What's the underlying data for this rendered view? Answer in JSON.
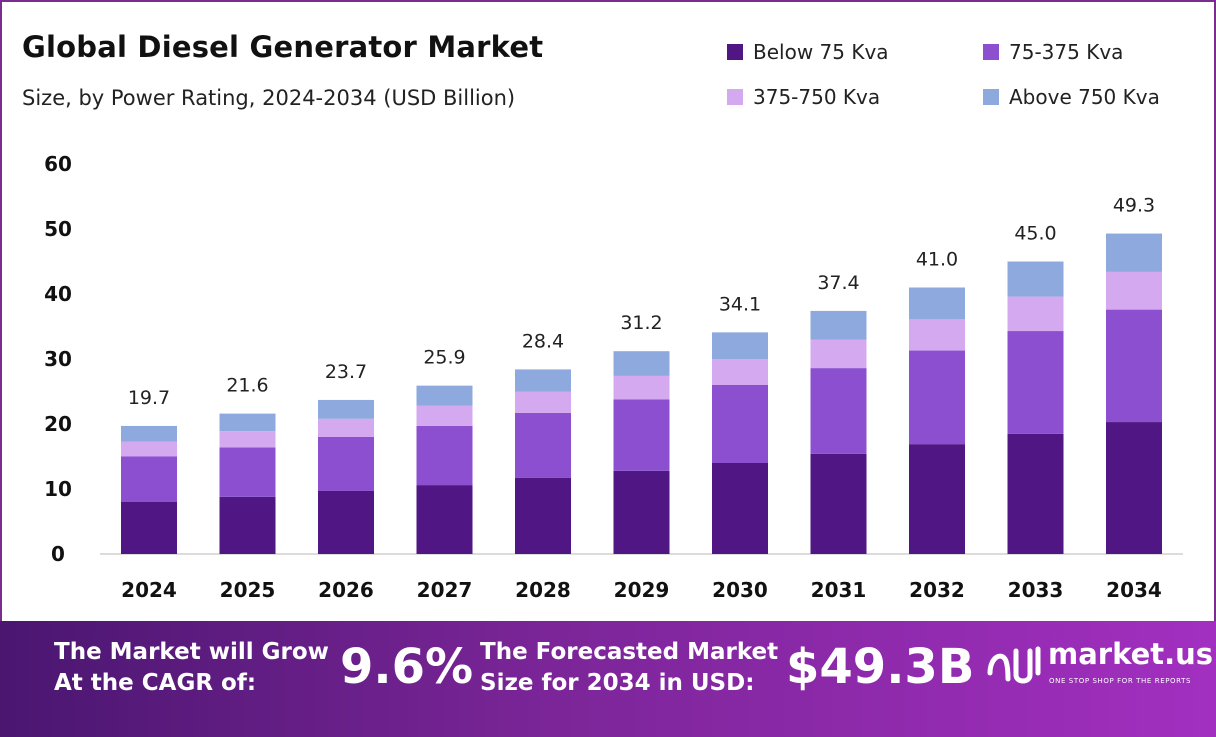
{
  "header": {
    "title": "Global Diesel Generator Market",
    "subtitle": "Size, by Power Rating, 2024-2034 (USD Billion)"
  },
  "colors": {
    "below_75": "#4f1684",
    "r75_375": "#8b4fd0",
    "r375_750": "#d4a9ef",
    "above_750": "#8ea9de",
    "footer_start": "#4a1670",
    "footer_end": "#a22fc0"
  },
  "chart_data": {
    "type": "bar",
    "stacked": true,
    "categories": [
      "2024",
      "2025",
      "2026",
      "2027",
      "2028",
      "2029",
      "2030",
      "2031",
      "2032",
      "2033",
      "2034"
    ],
    "series": [
      {
        "name": "Below 75 Kva",
        "color": "#4f1684",
        "values": [
          8.0,
          8.8,
          9.7,
          10.6,
          11.7,
          12.8,
          14.0,
          15.4,
          16.9,
          18.5,
          20.3
        ]
      },
      {
        "name": "75-375 Kva",
        "color": "#8b4fd0",
        "values": [
          7.0,
          7.6,
          8.3,
          9.1,
          10.0,
          11.0,
          12.0,
          13.2,
          14.4,
          15.8,
          17.3
        ]
      },
      {
        "name": "375-750 Kva",
        "color": "#d4a9ef",
        "values": [
          2.3,
          2.5,
          2.8,
          3.1,
          3.3,
          3.6,
          4.0,
          4.4,
          4.8,
          5.3,
          5.8
        ]
      },
      {
        "name": "Above 750 Kva",
        "color": "#8ea9de",
        "values": [
          2.4,
          2.7,
          2.9,
          3.1,
          3.4,
          3.8,
          4.1,
          4.4,
          4.9,
          5.4,
          5.9
        ]
      }
    ],
    "totals": [
      "19.7",
      "21.6",
      "23.7",
      "25.9",
      "28.4",
      "31.2",
      "34.1",
      "37.4",
      "41.0",
      "45.0",
      "49.3"
    ],
    "ylim": [
      0,
      60
    ],
    "yticks": [
      "0",
      "10",
      "20",
      "30",
      "40",
      "50",
      "60"
    ],
    "grid": false,
    "legend_position": "top-right"
  },
  "footer": {
    "cagr_label_line1": "The Market will Grow",
    "cagr_label_line2": "At the CAGR of:",
    "cagr_value": "9.6%",
    "forecast_label_line1": "The Forecasted Market",
    "forecast_label_line2": "Size for 2034 in USD:",
    "forecast_value": "$49.3B",
    "logo_name": "market.us",
    "logo_tagline": "ONE STOP SHOP FOR THE REPORTS",
    "logo_icon": "market-us-logo-icon"
  }
}
